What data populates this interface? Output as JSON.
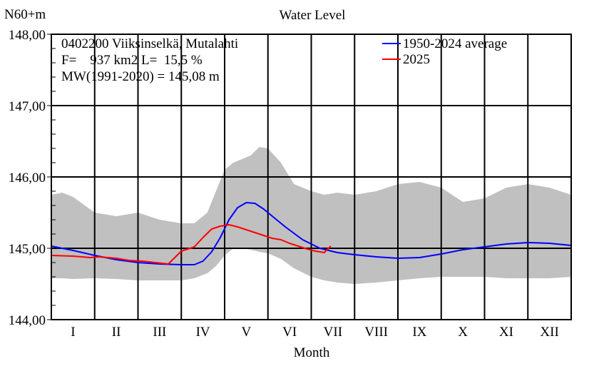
{
  "chart_data": {
    "type": "line",
    "title": "Water Level",
    "ylabel": "N60+m",
    "xlabel": "Month",
    "ylim": [
      144.0,
      148.0
    ],
    "yticks": [
      "144,00",
      "145,00",
      "146,00",
      "147,00",
      "148,00"
    ],
    "ytick_values": [
      144.0,
      145.0,
      146.0,
      147.0,
      148.0
    ],
    "months": [
      "I",
      "II",
      "III",
      "IV",
      "V",
      "VI",
      "VII",
      "VIII",
      "IX",
      "X",
      "XI",
      "XII"
    ],
    "info_lines": [
      "0402200 Viiksinselkä, Mutalahti",
      "F=    937 km2 L=  15,5 %",
      "MW(1991-2020) = 145,08 m"
    ],
    "legend_position": "top-right",
    "grid": true,
    "colors": {
      "average": "#0000ff",
      "year": "#ff0000",
      "band": "#c0c0c0",
      "axis": "#000000"
    },
    "band": {
      "name": "range",
      "x": [
        0,
        0.25,
        0.5,
        1.0,
        1.5,
        2.0,
        2.5,
        3.0,
        3.3,
        3.6,
        3.8,
        4.0,
        4.2,
        4.4,
        4.6,
        4.8,
        5.0,
        5.3,
        5.6,
        6.0,
        6.3,
        6.6,
        7.0,
        7.5,
        8.0,
        8.5,
        9.0,
        9.5,
        10.0,
        10.5,
        11.0,
        11.5,
        12.0
      ],
      "upper": [
        145.75,
        145.78,
        145.72,
        145.5,
        145.45,
        145.5,
        145.4,
        145.35,
        145.35,
        145.5,
        145.8,
        146.1,
        146.2,
        146.25,
        146.3,
        146.42,
        146.4,
        146.2,
        145.9,
        145.8,
        145.75,
        145.78,
        145.75,
        145.8,
        145.9,
        145.93,
        145.85,
        145.65,
        145.7,
        145.85,
        145.9,
        145.85,
        145.75
      ],
      "lower": [
        144.58,
        144.58,
        144.57,
        144.58,
        144.57,
        144.55,
        144.55,
        144.55,
        144.58,
        144.65,
        144.75,
        144.9,
        145.0,
        145.0,
        144.98,
        144.95,
        144.93,
        144.85,
        144.72,
        144.6,
        144.55,
        144.52,
        144.5,
        144.52,
        144.55,
        144.58,
        144.6,
        144.6,
        144.6,
        144.58,
        144.58,
        144.58,
        144.6
      ]
    },
    "series": [
      {
        "name": "1950-2024 average",
        "x": [
          0,
          0.5,
          1.0,
          1.5,
          2.0,
          2.5,
          3.0,
          3.3,
          3.5,
          3.7,
          3.9,
          4.1,
          4.3,
          4.5,
          4.7,
          4.9,
          5.1,
          5.4,
          5.8,
          6.2,
          6.6,
          7.0,
          7.5,
          8.0,
          8.5,
          9.0,
          9.5,
          10.0,
          10.5,
          11.0,
          11.5,
          12.0
        ],
        "y": [
          145.03,
          144.97,
          144.9,
          144.84,
          144.8,
          144.78,
          144.77,
          144.77,
          144.82,
          144.95,
          145.15,
          145.4,
          145.57,
          145.64,
          145.63,
          145.55,
          145.45,
          145.3,
          145.12,
          145.0,
          144.94,
          144.91,
          144.88,
          144.86,
          144.87,
          144.92,
          144.98,
          145.02,
          145.06,
          145.08,
          145.07,
          145.04
        ]
      },
      {
        "name": "2025",
        "x": [
          0,
          0.5,
          0.9,
          1.1,
          1.5,
          1.8,
          2.1,
          2.4,
          2.7,
          3.0,
          3.3,
          3.5,
          3.7,
          3.9,
          4.1,
          4.3,
          4.5,
          4.7,
          4.9,
          5.1,
          5.3,
          5.5,
          5.7,
          5.9,
          6.1,
          6.3,
          6.45
        ],
        "y": [
          144.9,
          144.89,
          144.87,
          144.88,
          144.86,
          144.83,
          144.82,
          144.8,
          144.78,
          144.96,
          145.02,
          145.15,
          145.27,
          145.31,
          145.33,
          145.3,
          145.26,
          145.22,
          145.18,
          145.14,
          145.12,
          145.07,
          145.03,
          144.99,
          144.96,
          144.94,
          145.03
        ]
      }
    ]
  }
}
